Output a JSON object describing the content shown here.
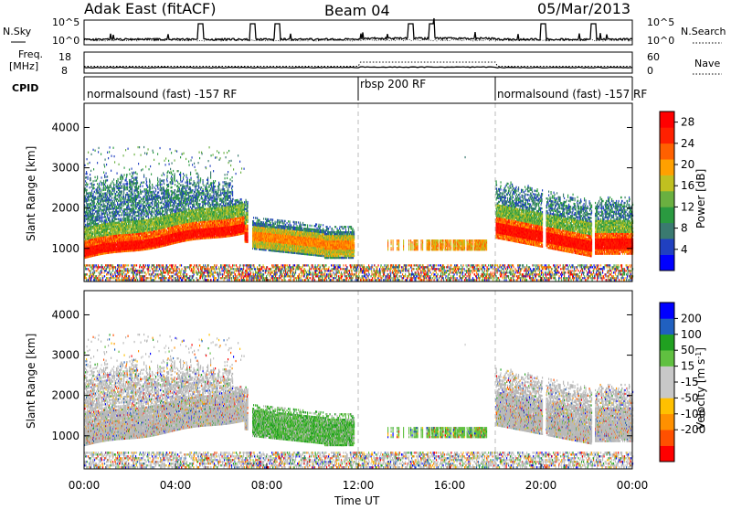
{
  "header": {
    "site": "Adak East (fitACF)",
    "beam": "Beam 04",
    "date": "05/Mar/2013"
  },
  "noise_panel": {
    "left_label": "N.Sky",
    "right_label": "N.Search",
    "left_ticks": [
      "10^5",
      "10^0"
    ],
    "right_ticks": [
      "10^5",
      "10^0"
    ]
  },
  "freq_panel": {
    "left_label_1": "Freq.",
    "left_label_2": "[MHz]",
    "right_label": "Nave",
    "left_ticks": [
      "18",
      "8"
    ],
    "right_ticks": [
      "60",
      "0"
    ]
  },
  "cpid": {
    "label": "CPID",
    "segments": [
      {
        "label": "normalsound (fast) -157 RF",
        "start": 0,
        "end": 12
      },
      {
        "label": "rbsp 200 RF",
        "start": 12,
        "end": 18
      },
      {
        "label": "normalsound (fast) -157 RF",
        "start": 18,
        "end": 24
      }
    ]
  },
  "colors": {
    "power_scale": [
      "#0000ff",
      "#2040c0",
      "#3a7a70",
      "#2a9a40",
      "#6ab040",
      "#c0c020",
      "#ffa000",
      "#ff6000",
      "#ff2000",
      "#ff0000"
    ],
    "velocity_scale": [
      "#ff0000",
      "#ff5000",
      "#ff9000",
      "#ffc000",
      "#c8c8c8",
      "#c8c8c8",
      "#60c040",
      "#20a020",
      "#2060c0",
      "#0000ff"
    ],
    "ground_scatter": "#b8b8b8"
  },
  "chart_data": [
    {
      "type": "heatmap",
      "panel": "power",
      "ylabel": "Slant Range [km]",
      "xlabel": "",
      "ylim": [
        180,
        4600
      ],
      "xlim": [
        0,
        24
      ],
      "y_ticks": [
        "1000",
        "2000",
        "3000",
        "4000"
      ],
      "colorbar": {
        "label": "Power [dB]",
        "ticks": [
          "4",
          "8",
          "12",
          "16",
          "20",
          "24",
          "28"
        ],
        "range": [
          0,
          30
        ]
      },
      "mode_change_hours": [
        12,
        18
      ]
    },
    {
      "type": "heatmap",
      "panel": "velocity",
      "ylabel": "Slant Range [km]",
      "xlabel": "Time UT",
      "ylim": [
        180,
        4600
      ],
      "xlim": [
        0,
        24
      ],
      "y_ticks": [
        "1000",
        "2000",
        "3000",
        "4000"
      ],
      "x_ticks": [
        "00:00",
        "04:00",
        "08:00",
        "12:00",
        "16:00",
        "20:00",
        "00:00"
      ],
      "colorbar": {
        "label": "Velocity [m s",
        "label_sup": "-1",
        "label_end": "]",
        "ticks": [
          "200",
          "100",
          "50",
          "15",
          "-15",
          "-50",
          "-100",
          "-200"
        ]
      },
      "mode_change_hours": [
        12,
        18
      ]
    }
  ]
}
